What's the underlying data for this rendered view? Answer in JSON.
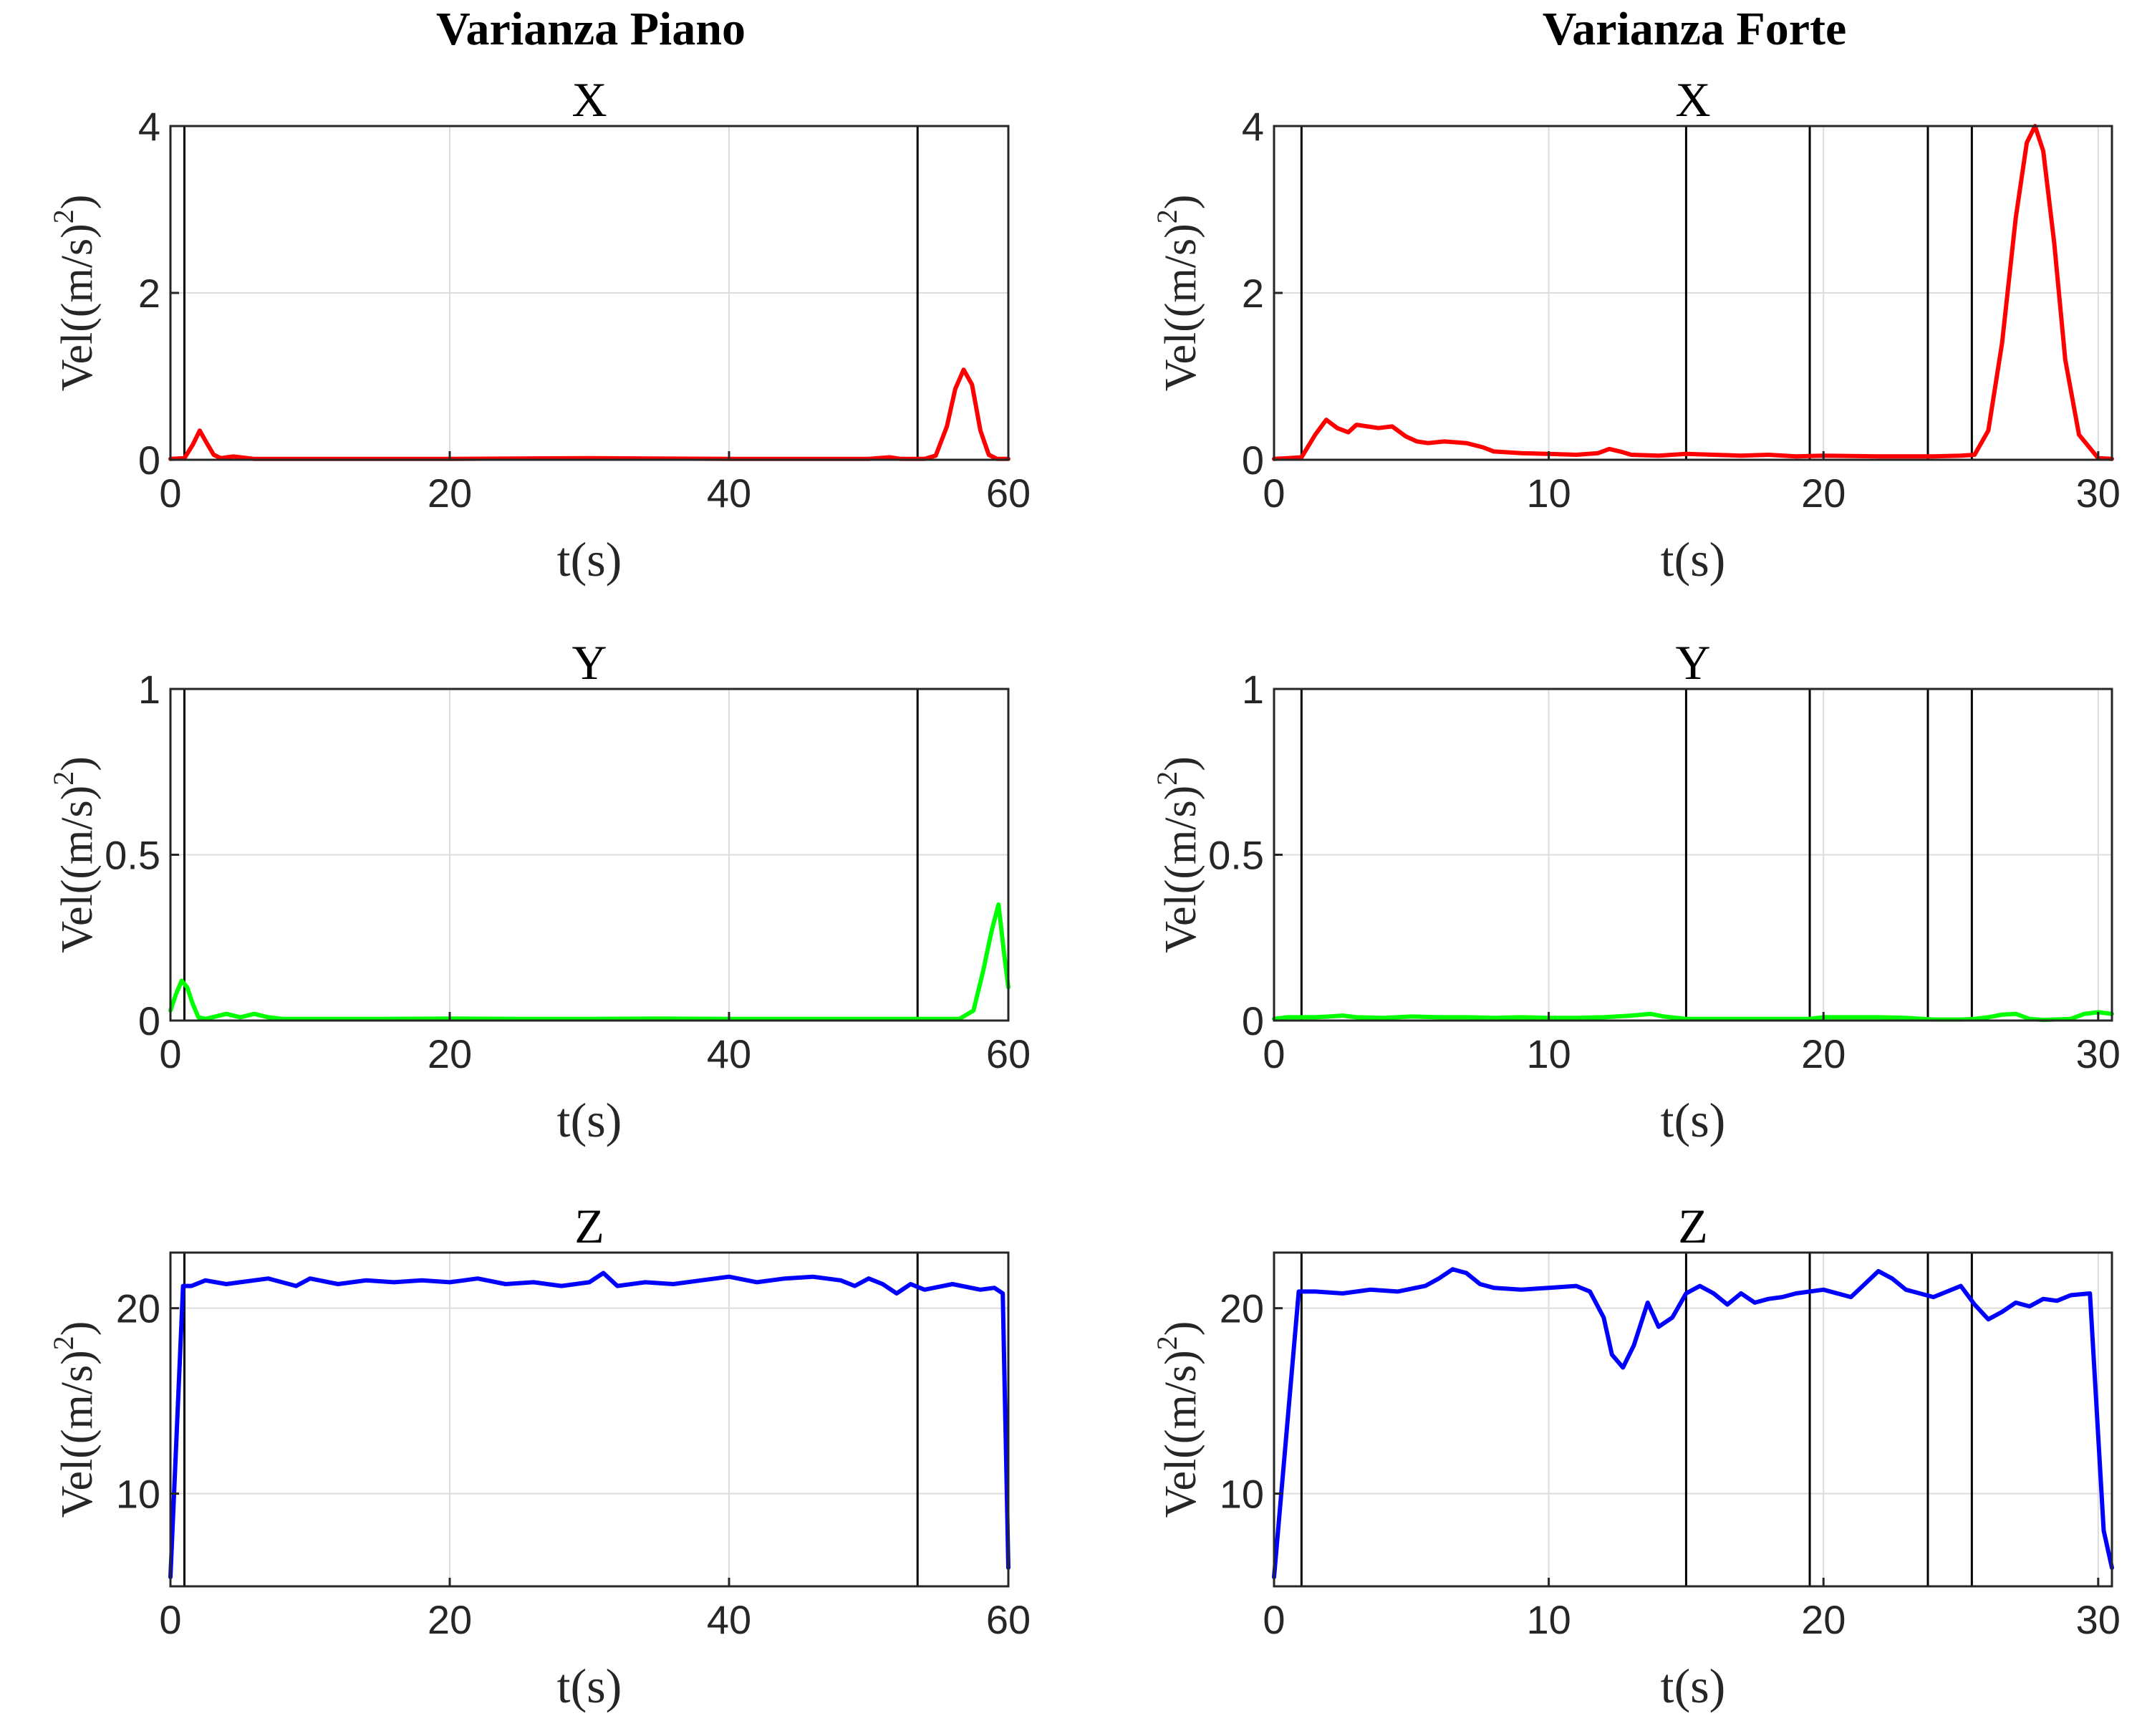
{
  "column_titles": [
    "Varianza Piano",
    "Varianza Forte"
  ],
  "chart_data": [
    {
      "type": "line",
      "column_title": "Varianza Piano",
      "title": "X",
      "xlabel": "t(s)",
      "ylabel": "Vel((m/s)",
      "ylabel_sup": "2",
      "ylabel_tail": ")",
      "xlim": [
        0,
        60
      ],
      "ylim": [
        0,
        4
      ],
      "xticks": [
        0,
        20,
        40,
        60
      ],
      "yticks": [
        0,
        2,
        4
      ],
      "grid": true,
      "color": "#ff0000",
      "vlines": [
        1,
        53.5
      ],
      "series": [
        {
          "x": [
            0,
            1,
            1.6,
            2.1,
            2.6,
            3.1,
            3.6,
            4.5,
            6,
            10,
            20,
            30,
            40,
            50,
            51.5,
            52.3,
            53,
            54,
            54.8,
            55.6,
            56.2,
            56.8,
            57.4,
            58,
            58.6,
            59.2,
            60
          ],
          "y": [
            0.01,
            0.02,
            0.18,
            0.35,
            0.2,
            0.06,
            0.02,
            0.04,
            0.01,
            0.01,
            0.01,
            0.02,
            0.01,
            0.01,
            0.03,
            0.01,
            0.01,
            0.01,
            0.05,
            0.4,
            0.85,
            1.08,
            0.9,
            0.35,
            0.06,
            0.01,
            0.01
          ]
        }
      ]
    },
    {
      "type": "line",
      "column_title": "Varianza Forte",
      "title": "X",
      "xlabel": "t(s)",
      "ylabel": "Vel((m/s)",
      "ylabel_sup": "2",
      "ylabel_tail": ")",
      "xlim": [
        0,
        30.5
      ],
      "ylim": [
        0,
        4
      ],
      "xticks": [
        0,
        10,
        20,
        30
      ],
      "yticks": [
        0,
        2,
        4
      ],
      "grid": true,
      "color": "#ff0000",
      "vlines": [
        1,
        15,
        19.5,
        23.8,
        25.4
      ],
      "series": [
        {
          "x": [
            0,
            0.5,
            1,
            1.5,
            1.9,
            2.3,
            2.7,
            3,
            3.4,
            3.8,
            4.3,
            4.8,
            5.2,
            5.6,
            6.2,
            7,
            7.6,
            8,
            9,
            10,
            11,
            11.8,
            12.2,
            12.6,
            13,
            14,
            15,
            16,
            17,
            18,
            19,
            20,
            22,
            24,
            25,
            25.5,
            26,
            26.5,
            27,
            27.4,
            27.7,
            28,
            28.4,
            28.8,
            29.3,
            30,
            30.5
          ],
          "y": [
            0.01,
            0.02,
            0.03,
            0.3,
            0.48,
            0.38,
            0.33,
            0.42,
            0.4,
            0.38,
            0.4,
            0.28,
            0.22,
            0.2,
            0.22,
            0.2,
            0.15,
            0.1,
            0.08,
            0.07,
            0.06,
            0.08,
            0.13,
            0.1,
            0.06,
            0.05,
            0.07,
            0.06,
            0.05,
            0.06,
            0.04,
            0.05,
            0.04,
            0.04,
            0.05,
            0.06,
            0.35,
            1.4,
            2.9,
            3.8,
            4.0,
            3.7,
            2.6,
            1.2,
            0.3,
            0.02,
            0.01
          ]
        }
      ]
    },
    {
      "type": "line",
      "column_title": "Varianza Piano",
      "title": "Y",
      "xlabel": "t(s)",
      "ylabel": "Vel((m/s)",
      "ylabel_sup": "2",
      "ylabel_tail": ")",
      "xlim": [
        0,
        60
      ],
      "ylim": [
        0,
        1
      ],
      "xticks": [
        0,
        20,
        40,
        60
      ],
      "yticks": [
        0,
        0.5,
        1
      ],
      "grid": true,
      "color": "#00ff00",
      "vlines": [
        1,
        53.5
      ],
      "series": [
        {
          "x": [
            0,
            0.4,
            0.8,
            1.2,
            1.6,
            2,
            2.5,
            3,
            4,
            5,
            6,
            7,
            8,
            10,
            15,
            20,
            25,
            30,
            35,
            40,
            45,
            50,
            55,
            56.5,
            57.5,
            58.2,
            58.8,
            59.3,
            59.7,
            60
          ],
          "y": [
            0.03,
            0.08,
            0.12,
            0.1,
            0.05,
            0.01,
            0.005,
            0.01,
            0.02,
            0.01,
            0.02,
            0.01,
            0.005,
            0.005,
            0.005,
            0.006,
            0.005,
            0.005,
            0.006,
            0.005,
            0.005,
            0.005,
            0.005,
            0.005,
            0.03,
            0.15,
            0.27,
            0.35,
            0.2,
            0.1
          ]
        }
      ]
    },
    {
      "type": "line",
      "column_title": "Varianza Forte",
      "title": "Y",
      "xlabel": "t(s)",
      "ylabel": "Vel((m/s)",
      "ylabel_sup": "2",
      "ylabel_tail": ")",
      "xlim": [
        0,
        30.5
      ],
      "ylim": [
        0,
        1
      ],
      "xticks": [
        0,
        10,
        20,
        30
      ],
      "yticks": [
        0,
        0.5,
        1
      ],
      "grid": true,
      "color": "#00ff00",
      "vlines": [
        1,
        15,
        19.5,
        23.8,
        25.4
      ],
      "series": [
        {
          "x": [
            0,
            0.5,
            1,
            1.5,
            2,
            2.5,
            3,
            4,
            5,
            6,
            7,
            8,
            9,
            10,
            11,
            12,
            13,
            13.7,
            14.2,
            15,
            16,
            17,
            18,
            19,
            19.5,
            20,
            21,
            22,
            23,
            24,
            25,
            25.5,
            26,
            26.5,
            27,
            27.5,
            28,
            29,
            29.5,
            30,
            30.5
          ],
          "y": [
            0.005,
            0.01,
            0.01,
            0.01,
            0.012,
            0.015,
            0.01,
            0.008,
            0.012,
            0.01,
            0.01,
            0.008,
            0.01,
            0.008,
            0.008,
            0.01,
            0.015,
            0.02,
            0.012,
            0.005,
            0.005,
            0.005,
            0.005,
            0.005,
            0.005,
            0.01,
            0.01,
            0.01,
            0.008,
            0.003,
            0.003,
            0.005,
            0.01,
            0.018,
            0.02,
            0.005,
            0.002,
            0.005,
            0.02,
            0.025,
            0.02
          ]
        }
      ]
    },
    {
      "type": "line",
      "column_title": "Varianza Piano",
      "title": "Z",
      "xlabel": "t(s)",
      "ylabel": "Vel((m/s)",
      "ylabel_sup": "2",
      "ylabel_tail": ")",
      "xlim": [
        0,
        60
      ],
      "ylim": [
        5,
        23
      ],
      "xticks": [
        0,
        20,
        40,
        60
      ],
      "yticks": [
        10,
        20
      ],
      "grid": true,
      "color": "#0000ff",
      "vlines": [
        1,
        53.5
      ],
      "series": [
        {
          "x": [
            0,
            0.9,
            1.5,
            2.5,
            4,
            5,
            7,
            9,
            10,
            12,
            14,
            16,
            18,
            20,
            22,
            24,
            26,
            28,
            30,
            31,
            32,
            34,
            36,
            38,
            40,
            42,
            44,
            46,
            48,
            49,
            50,
            51,
            52,
            53,
            54,
            56,
            58,
            59,
            59.6,
            60
          ],
          "y": [
            5.5,
            21.2,
            21.2,
            21.5,
            21.3,
            21.4,
            21.6,
            21.2,
            21.6,
            21.3,
            21.5,
            21.4,
            21.5,
            21.4,
            21.6,
            21.3,
            21.4,
            21.2,
            21.4,
            21.9,
            21.2,
            21.4,
            21.3,
            21.5,
            21.7,
            21.4,
            21.6,
            21.7,
            21.5,
            21.2,
            21.6,
            21.3,
            20.8,
            21.3,
            21.0,
            21.3,
            21.0,
            21.1,
            20.8,
            6.0
          ]
        }
      ]
    },
    {
      "type": "line",
      "column_title": "Varianza Forte",
      "title": "Z",
      "xlabel": "t(s)",
      "ylabel": "Vel((m/s)",
      "ylabel_sup": "2",
      "ylabel_tail": ")",
      "xlim": [
        0,
        30.5
      ],
      "ylim": [
        5,
        23
      ],
      "xticks": [
        0,
        10,
        20,
        30
      ],
      "yticks": [
        10,
        20
      ],
      "grid": true,
      "color": "#0000ff",
      "vlines": [
        1,
        15,
        19.5,
        23.8,
        25.4
      ],
      "series": [
        {
          "x": [
            0,
            0.9,
            1.5,
            2.5,
            3.5,
            4.5,
            5.5,
            6,
            6.5,
            7,
            7.5,
            8,
            9,
            10,
            11,
            11.5,
            12,
            12.3,
            12.7,
            13.1,
            13.6,
            14,
            14.5,
            15,
            15.5,
            16,
            16.5,
            17,
            17.5,
            18,
            18.5,
            19,
            20,
            21,
            21.5,
            22,
            22.5,
            23,
            24,
            25,
            25.5,
            26,
            26.5,
            27,
            27.5,
            28,
            28.5,
            29,
            29.7,
            30.2,
            30.5
          ],
          "y": [
            5.5,
            20.9,
            20.9,
            20.8,
            21.0,
            20.9,
            21.2,
            21.6,
            22.1,
            21.9,
            21.3,
            21.1,
            21.0,
            21.1,
            21.2,
            20.9,
            19.5,
            17.5,
            16.8,
            18.0,
            20.3,
            19.0,
            19.5,
            20.8,
            21.2,
            20.8,
            20.2,
            20.8,
            20.3,
            20.5,
            20.6,
            20.8,
            21.0,
            20.6,
            21.3,
            22.0,
            21.6,
            21.0,
            20.6,
            21.2,
            20.2,
            19.4,
            19.8,
            20.3,
            20.1,
            20.5,
            20.4,
            20.7,
            20.8,
            8.0,
            6.0
          ]
        }
      ]
    }
  ]
}
